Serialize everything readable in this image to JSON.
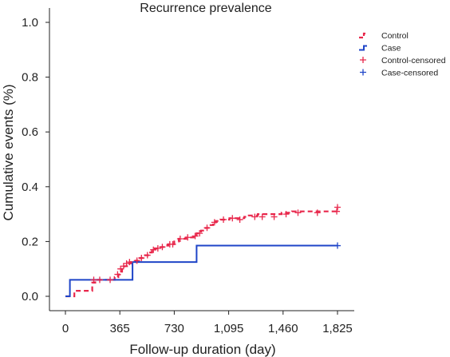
{
  "chart_data": {
    "type": "line",
    "title": "Recurrence prevalence",
    "xlabel": "Follow-up duration (day)",
    "ylabel": "Cumulative events (%)",
    "xlim": [
      -30,
      1900
    ],
    "ylim": [
      -0.02,
      1.05
    ],
    "xticks": [
      0,
      365,
      730,
      1095,
      1460,
      1825
    ],
    "xtick_labels": [
      "0",
      "365",
      "730",
      "1,095",
      "1,460",
      "1,825"
    ],
    "yticks": [
      0.0,
      0.2,
      0.4,
      0.6,
      0.8,
      1.0
    ],
    "ytick_labels": [
      "0.0",
      "0.2",
      "0.4",
      "0.6",
      "0.8",
      "1.0"
    ],
    "grid": false,
    "legend_position": "top-right",
    "colors": {
      "control": "#e8274b",
      "case": "#1f45c8",
      "axis": "#222222"
    },
    "series": [
      {
        "name": "Control",
        "style": "dashed-step",
        "x": [
          0,
          60,
          180,
          200,
          280,
          330,
          355,
          365,
          380,
          395,
          420,
          440,
          470,
          500,
          520,
          560,
          580,
          600,
          640,
          660,
          690,
          730,
          760,
          810,
          860,
          880,
          910,
          940,
          960,
          990,
          1010,
          1040,
          1100,
          1200,
          1230,
          1290,
          1380,
          1450,
          1520,
          1640,
          1825
        ],
        "y": [
          0.0,
          0.02,
          0.05,
          0.06,
          0.06,
          0.07,
          0.08,
          0.09,
          0.1,
          0.11,
          0.12,
          0.125,
          0.13,
          0.14,
          0.15,
          0.16,
          0.17,
          0.175,
          0.18,
          0.185,
          0.19,
          0.2,
          0.21,
          0.215,
          0.22,
          0.23,
          0.24,
          0.25,
          0.26,
          0.27,
          0.275,
          0.28,
          0.285,
          0.29,
          0.295,
          0.3,
          0.3,
          0.305,
          0.31,
          0.31,
          0.32
        ]
      },
      {
        "name": "Case",
        "style": "solid-step",
        "x": [
          0,
          30,
          450,
          880,
          1825
        ],
        "y": [
          0.0,
          0.06,
          0.125,
          0.185,
          0.185
        ]
      },
      {
        "name": "Control-censored",
        "style": "censor-marks",
        "x": [
          190,
          230,
          300,
          350,
          370,
          390,
          410,
          430,
          480,
          510,
          550,
          590,
          620,
          650,
          700,
          720,
          770,
          820,
          870,
          900,
          950,
          1000,
          1060,
          1120,
          1170,
          1270,
          1320,
          1400,
          1480,
          1560,
          1690,
          1820,
          1825
        ],
        "y": [
          0.06,
          0.06,
          0.06,
          0.08,
          0.1,
          0.11,
          0.12,
          0.125,
          0.13,
          0.14,
          0.15,
          0.17,
          0.175,
          0.18,
          0.19,
          0.19,
          0.21,
          0.215,
          0.22,
          0.23,
          0.25,
          0.27,
          0.28,
          0.285,
          0.28,
          0.29,
          0.29,
          0.29,
          0.3,
          0.305,
          0.305,
          0.31,
          0.325
        ]
      },
      {
        "name": "Case-censored",
        "style": "censor-marks",
        "x": [
          1825
        ],
        "y": [
          0.185
        ]
      }
    ]
  }
}
